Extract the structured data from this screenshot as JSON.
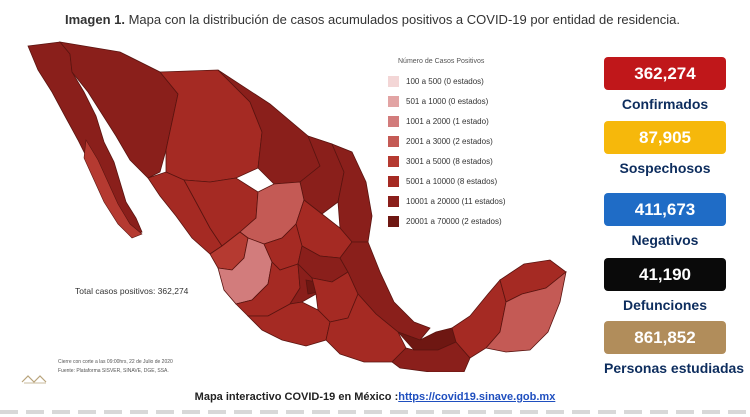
{
  "header": {
    "label": "Imagen 1.",
    "text": "Mapa con la distribución de casos acumulados positivos a COVID-19 por entidad de residencia."
  },
  "legend": {
    "title": "Número de Casos Positivos",
    "items": [
      {
        "label": "100 a    500  (0 estados)",
        "color": "#f3d6d6"
      },
      {
        "label": "501 a   1000  (0 estados)",
        "color": "#e2a4a4"
      },
      {
        "label": "1001 a  2000  (1 estado)",
        "color": "#d27c7c"
      },
      {
        "label": "2001 a  3000  (2 estados)",
        "color": "#c45a55"
      },
      {
        "label": "3001 a  5000  (8 estados)",
        "color": "#b53a31"
      },
      {
        "label": "5001 a  10000  (8 estados)",
        "color": "#a52a23"
      },
      {
        "label": "10001 a 20000  (11 estados)",
        "color": "#8a1f1b"
      },
      {
        "label": "20001 a 70000  (2 estados)",
        "color": "#6e1712"
      }
    ]
  },
  "map": {
    "total_label": "Total casos positivos: 362,274"
  },
  "footnotes": {
    "line1": "Cierre con corte a las 09:00hrs, 22 de Julio de 2020",
    "line2": "Fuente: Plataforma SISVER, SINAVE, DGE, SSA."
  },
  "stats": [
    {
      "value": "362,274",
      "label": "Confirmados",
      "color": "#c0171a"
    },
    {
      "value": "87,905",
      "label": "Sospechosos",
      "color": "#f6b80b"
    },
    {
      "value": "411,673",
      "label": "Negativos",
      "color": "#1f6cc6"
    },
    {
      "value": "41,190",
      "label": "Defunciones",
      "color": "#0a0a0a"
    },
    {
      "value": "861,852",
      "label": "Personas estudiadas",
      "color": "#b18d5b"
    }
  ],
  "bottom": {
    "text": "Mapa interactivo COVID-19 en México :",
    "link": "https://covid19.sinave.gob.mx"
  }
}
